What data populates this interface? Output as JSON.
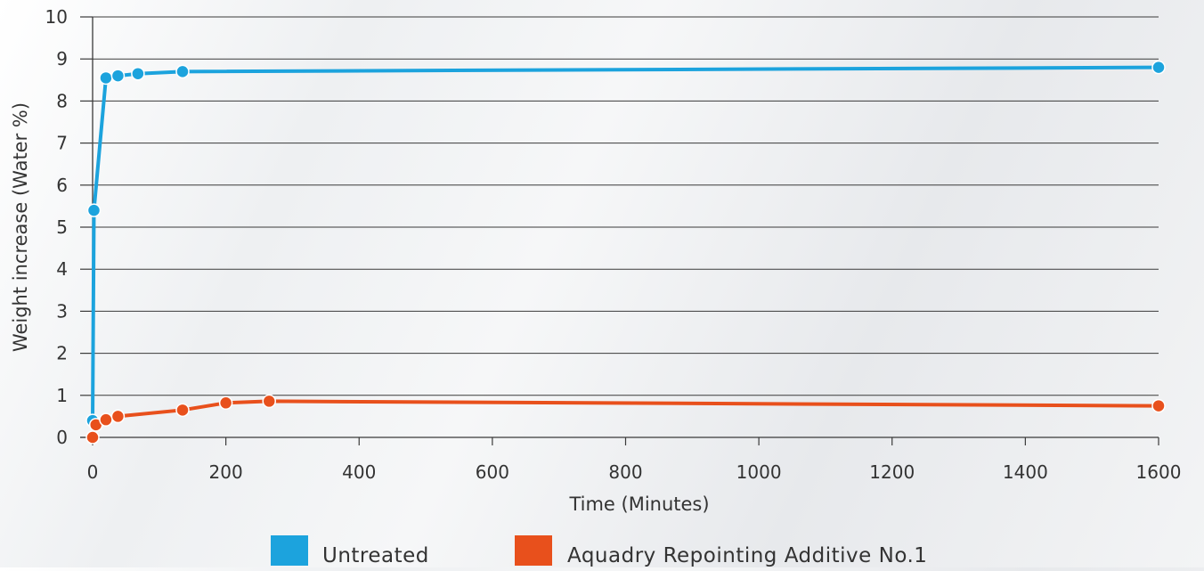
{
  "chart_data": {
    "type": "line",
    "title": "",
    "xlabel": "Time (Minutes)",
    "ylabel": "Weight increase (Water %)",
    "xlim": [
      0,
      1600
    ],
    "ylim": [
      0,
      10
    ],
    "x_ticks": [
      0,
      200,
      400,
      600,
      800,
      1000,
      1200,
      1400,
      1600
    ],
    "y_ticks": [
      0,
      1,
      2,
      3,
      4,
      5,
      6,
      7,
      8,
      9,
      10
    ],
    "grid": true,
    "legend_position": "bottom",
    "series": [
      {
        "name": "Untreated",
        "color": "#1ca3dd",
        "points": [
          [
            0,
            0.4
          ],
          [
            2,
            5.4
          ],
          [
            20,
            8.55
          ],
          [
            38,
            8.6
          ],
          [
            68,
            8.65
          ],
          [
            135,
            8.7
          ],
          [
            1600,
            8.8
          ]
        ]
      },
      {
        "name": "Aquadry Repointing Additive No.1",
        "color": "#e8501c",
        "points": [
          [
            0,
            0.0
          ],
          [
            5,
            0.3
          ],
          [
            20,
            0.42
          ],
          [
            38,
            0.5
          ],
          [
            135,
            0.65
          ],
          [
            200,
            0.82
          ],
          [
            265,
            0.86
          ],
          [
            1600,
            0.75
          ]
        ]
      }
    ]
  }
}
